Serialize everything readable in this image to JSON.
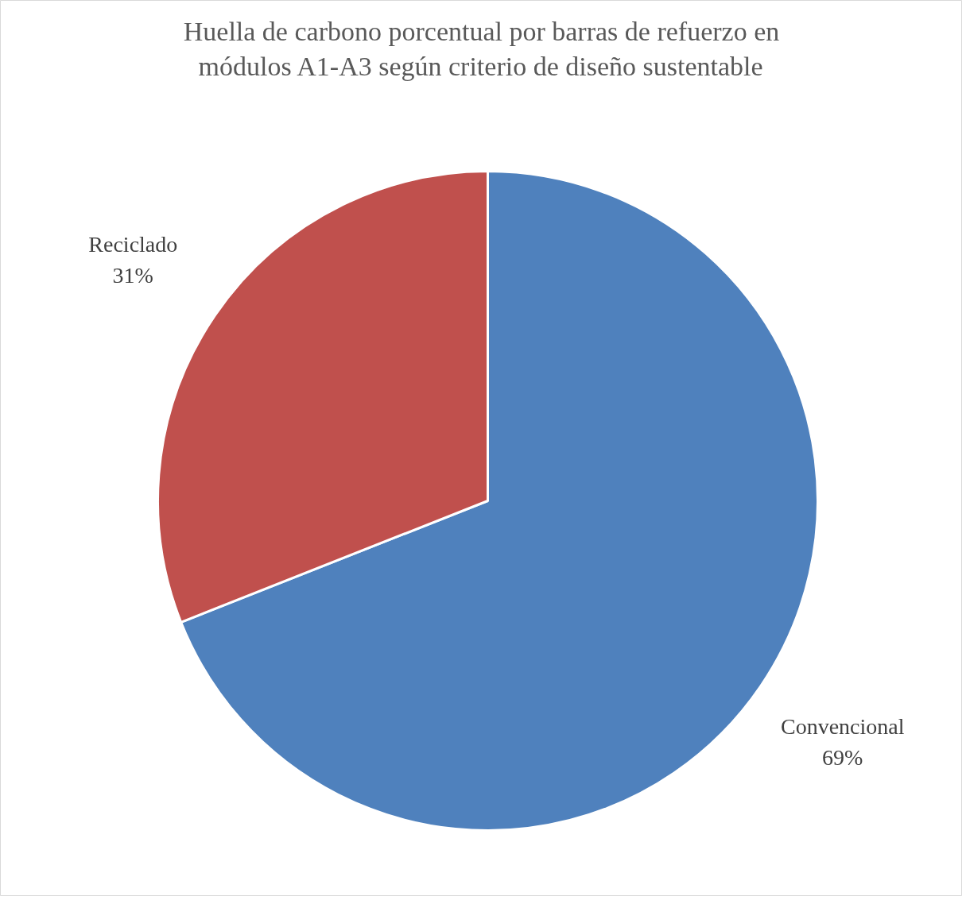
{
  "chart_data": {
    "type": "pie",
    "title": "Huella de carbono porcentual por barras de refuerzo en módulos A1-A3 según criterio de diseño sustentable",
    "categories": [
      "Convencional",
      "Reciclado"
    ],
    "values": [
      69,
      31
    ],
    "value_labels": [
      "69%",
      "31%"
    ],
    "colors": [
      "#4f81bd",
      "#c0504d"
    ]
  }
}
